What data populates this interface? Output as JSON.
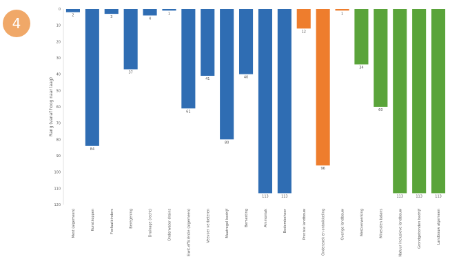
{
  "badge": {
    "number": "4"
  },
  "chart_data": {
    "type": "bar",
    "ylabel": "Rang (vanaf hoog naar laag)",
    "ylim": [
      0,
      120
    ],
    "yticks": [
      0,
      10,
      20,
      30,
      40,
      50,
      60,
      70,
      80,
      90,
      100,
      110,
      120
    ],
    "y_inverted": true,
    "colors": {
      "blue": "#2f6db3",
      "orange": "#ee7d2d",
      "green": "#5aa43a"
    },
    "categories": [
      "Mest (algemeen)",
      "Kunstkoppen",
      "Fosfaatbinders",
      "Beregening",
      "Drainage (recht)",
      "Onderwater drains",
      "Eiwit-efficiëntie (algemeen)",
      "Veevoer verbeteren",
      "Maatregel bedrijf",
      "Bemesting",
      "Ammoniak",
      "Bodembeheer",
      "Precisie landbouw",
      "Onderzoek en ontwikkeling",
      "Overige landbouw",
      "Mestverwerking",
      "Mineralen balans",
      "Natuur inclusieve landbouw",
      "Grondgebonden bedrijf",
      "Landbouw algemeen"
    ],
    "series": [
      {
        "values": [
          2,
          84,
          3,
          37,
          4,
          1,
          61,
          41,
          80,
          40,
          113,
          113,
          12,
          96,
          1,
          34,
          60,
          113,
          113,
          113
        ],
        "groups": [
          "blue",
          "blue",
          "blue",
          "blue",
          "blue",
          "blue",
          "blue",
          "blue",
          "blue",
          "blue",
          "blue",
          "blue",
          "orange",
          "orange",
          "orange",
          "green",
          "green",
          "green",
          "green",
          "green"
        ]
      }
    ]
  }
}
